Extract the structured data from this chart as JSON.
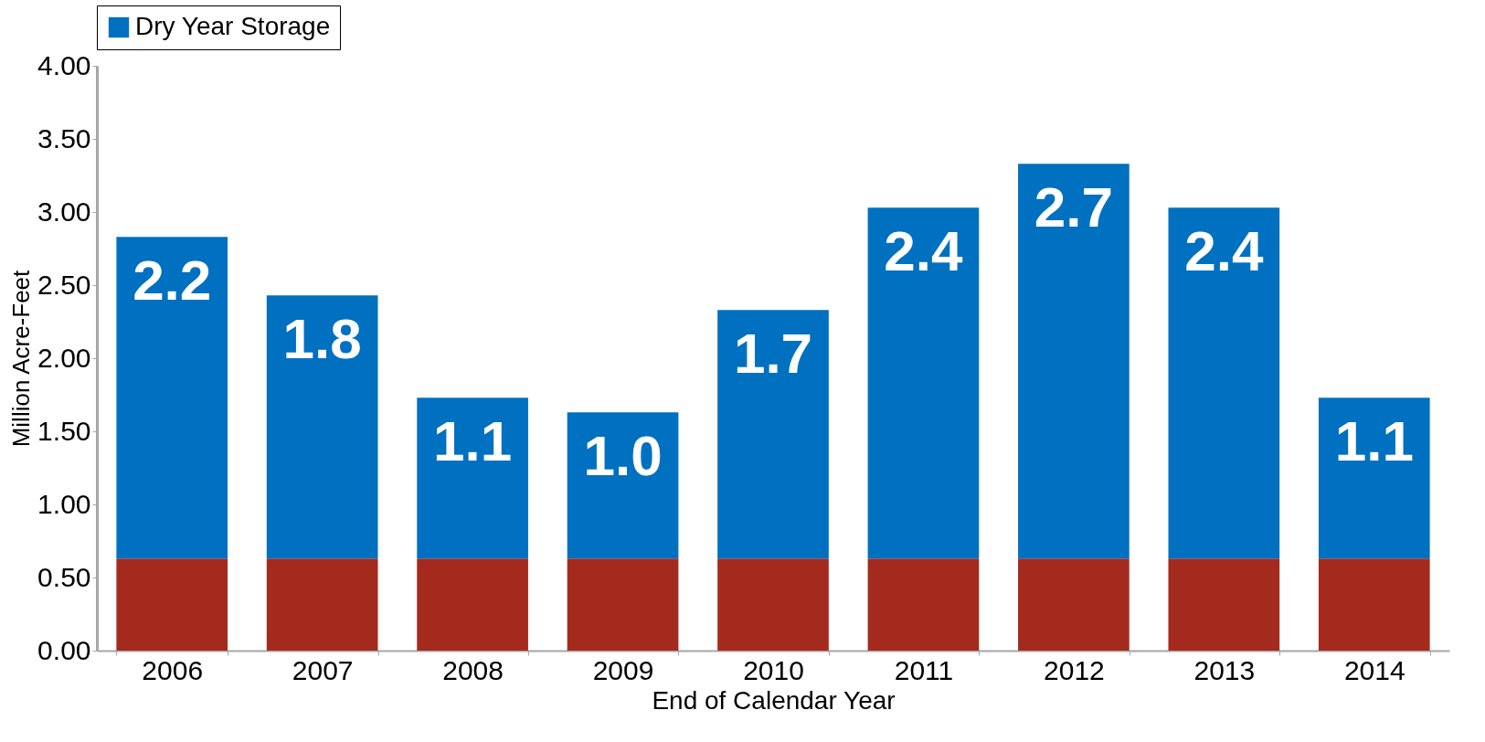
{
  "chart_data": {
    "type": "bar",
    "stacked": true,
    "xlabel": "End  of Calendar Year",
    "ylabel": "Million Acre-Feet",
    "categories": [
      "2006",
      "2007",
      "2008",
      "2009",
      "2010",
      "2011",
      "2012",
      "2013",
      "2014"
    ],
    "series": [
      {
        "color": "#a52a1e",
        "values": [
          0.63,
          0.63,
          0.63,
          0.63,
          0.63,
          0.63,
          0.63,
          0.63,
          0.63
        ]
      },
      {
        "name": "Dry Year Storage",
        "color": "#0070c0",
        "values": [
          2.2,
          1.8,
          1.1,
          1.0,
          1.7,
          2.4,
          2.7,
          2.4,
          1.1
        ],
        "value_labels": [
          "2.2",
          "1.8",
          "1.1",
          "1.0",
          "1.7",
          "2.4",
          "2.7",
          "2.4",
          "1.1"
        ]
      }
    ],
    "ylim": [
      0,
      4
    ],
    "yticks": [
      {
        "value": 0,
        "label": "0.00"
      },
      {
        "value": 0.5,
        "label": "0.50"
      },
      {
        "value": 1,
        "label": "1.00"
      },
      {
        "value": 1.5,
        "label": "1.50"
      },
      {
        "value": 2,
        "label": "2.00"
      },
      {
        "value": 2.5,
        "label": "2.50"
      },
      {
        "value": 3,
        "label": "3.00"
      },
      {
        "value": 3.5,
        "label": "3.50"
      },
      {
        "value": 4,
        "label": "4.00"
      }
    ],
    "grid": false,
    "legend": "top"
  }
}
